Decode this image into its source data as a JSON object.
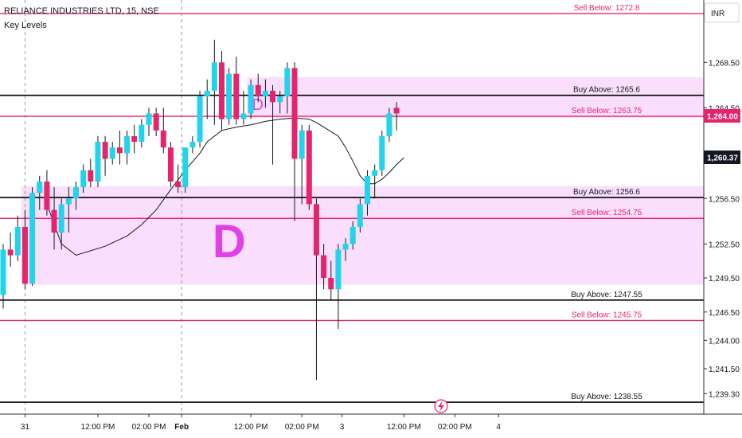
{
  "header": {
    "symbol_line": "RELIANCE INDUSTRIES LTD, 15, NSE",
    "indicator": "Key Levels"
  },
  "currency": "INR",
  "price_badges": {
    "current": "1,264.00",
    "crosshair": "1,260.37"
  },
  "colors": {
    "up": "#22d3ee",
    "down": "#e6246e",
    "buy_line": "#000000",
    "sell_line": "#e6246e",
    "zone_fill": "#f9d9fb",
    "zone_label": "#e040e8",
    "ma_line": "#131722"
  },
  "chart_data": {
    "type": "candlestick",
    "title": "RELIANCE INDUSTRIES LTD, 15, NSE",
    "ylim": [
      1237.5,
      1274.0
    ],
    "y_ticks": [
      {
        "value": 1268.5,
        "label": "1,268.50"
      },
      {
        "value": 1264.5,
        "label": "1,264.50"
      },
      {
        "value": 1256.5,
        "label": "1,256.50"
      },
      {
        "value": 1252.5,
        "label": "1,252.50"
      },
      {
        "value": 1249.5,
        "label": "1,249.50"
      },
      {
        "value": 1246.5,
        "label": "1,246.50"
      },
      {
        "value": 1244.0,
        "label": "1,244.00"
      },
      {
        "value": 1241.5,
        "label": "1,241.50"
      },
      {
        "value": 1239.3,
        "label": "1,239.30"
      }
    ],
    "x_ticks": [
      {
        "index": 3,
        "label": "31"
      },
      {
        "index": 13,
        "label": "12:00 PM"
      },
      {
        "index": 20,
        "label": "02:00 PM"
      },
      {
        "index": 24.5,
        "label": "Feb"
      },
      {
        "index": 34,
        "label": "12:00 PM"
      },
      {
        "index": 41,
        "label": "02:00 PM"
      },
      {
        "index": 46.5,
        "label": "3"
      },
      {
        "index": 55,
        "label": "12:00 PM"
      },
      {
        "index": 62,
        "label": "02:00 PM"
      },
      {
        "index": 68,
        "label": "4"
      }
    ],
    "session_breaks": [
      3,
      24.5
    ],
    "levels": [
      {
        "label": "Sell Below: 1272.8",
        "value": 1272.8,
        "kind": "sell"
      },
      {
        "label": "Buy Above: 1265.6",
        "value": 1265.6,
        "kind": "buy"
      },
      {
        "label": "Sell Below: 1263.75",
        "value": 1263.75,
        "kind": "sell"
      },
      {
        "label": "Buy Above: 1256.6",
        "value": 1256.6,
        "kind": "buy"
      },
      {
        "label": "Sell Below: 1254.75",
        "value": 1254.75,
        "kind": "sell"
      },
      {
        "label": "Buy Above: 1247.55",
        "value": 1247.55,
        "kind": "buy"
      },
      {
        "label": "Sell Below: 1245.75",
        "value": 1245.75,
        "kind": "sell"
      },
      {
        "label": "Buy Above: 1238.55",
        "value": 1238.55,
        "kind": "buy"
      }
    ],
    "zones": [
      {
        "label": "D",
        "top": 1267.2,
        "bottom": 1263.6,
        "start_index": 34,
        "label_size": "small"
      },
      {
        "label": "D",
        "top": 1257.6,
        "bottom": 1248.9,
        "start_index": 3,
        "label_size": "large"
      }
    ],
    "candles": [
      {
        "o": 1248.0,
        "h": 1252.5,
        "l": 1246.8,
        "c": 1252.0
      },
      {
        "o": 1252.0,
        "h": 1253.5,
        "l": 1250.5,
        "c": 1251.5
      },
      {
        "o": 1251.5,
        "h": 1255.0,
        "l": 1251.0,
        "c": 1254.0
      },
      {
        "o": 1254.0,
        "h": 1255.5,
        "l": 1248.5,
        "c": 1249.0
      },
      {
        "o": 1249.0,
        "h": 1257.5,
        "l": 1248.8,
        "c": 1257.0
      },
      {
        "o": 1257.0,
        "h": 1258.5,
        "l": 1255.5,
        "c": 1258.0
      },
      {
        "o": 1258.0,
        "h": 1259.0,
        "l": 1255.0,
        "c": 1255.5
      },
      {
        "o": 1255.5,
        "h": 1257.5,
        "l": 1252.0,
        "c": 1253.5
      },
      {
        "o": 1253.5,
        "h": 1256.5,
        "l": 1252.0,
        "c": 1256.0
      },
      {
        "o": 1256.0,
        "h": 1257.5,
        "l": 1253.5,
        "c": 1256.5
      },
      {
        "o": 1256.5,
        "h": 1258.0,
        "l": 1255.5,
        "c": 1257.5
      },
      {
        "o": 1257.5,
        "h": 1259.5,
        "l": 1257.0,
        "c": 1259.0
      },
      {
        "o": 1259.0,
        "h": 1260.0,
        "l": 1257.5,
        "c": 1258.0
      },
      {
        "o": 1258.0,
        "h": 1262.0,
        "l": 1257.5,
        "c": 1261.5
      },
      {
        "o": 1261.5,
        "h": 1262.0,
        "l": 1258.5,
        "c": 1260.0
      },
      {
        "o": 1260.0,
        "h": 1261.5,
        "l": 1259.5,
        "c": 1261.0
      },
      {
        "o": 1261.0,
        "h": 1262.5,
        "l": 1259.5,
        "c": 1260.5
      },
      {
        "o": 1260.5,
        "h": 1262.5,
        "l": 1259.5,
        "c": 1262.0
      },
      {
        "o": 1262.0,
        "h": 1263.0,
        "l": 1260.5,
        "c": 1261.5
      },
      {
        "o": 1261.5,
        "h": 1263.5,
        "l": 1261.0,
        "c": 1263.0
      },
      {
        "o": 1263.0,
        "h": 1264.5,
        "l": 1262.0,
        "c": 1264.0
      },
      {
        "o": 1264.0,
        "h": 1264.5,
        "l": 1262.0,
        "c": 1262.5
      },
      {
        "o": 1262.5,
        "h": 1264.5,
        "l": 1260.5,
        "c": 1261.0
      },
      {
        "o": 1261.0,
        "h": 1261.5,
        "l": 1257.5,
        "c": 1258.0
      },
      {
        "o": 1258.0,
        "h": 1259.5,
        "l": 1257.0,
        "c": 1257.5
      },
      {
        "o": 1257.5,
        "h": 1261.0,
        "l": 1257.0,
        "c": 1261.0
      },
      {
        "o": 1261.0,
        "h": 1262.0,
        "l": 1260.5,
        "c": 1261.5
      },
      {
        "o": 1261.5,
        "h": 1266.0,
        "l": 1261.0,
        "c": 1265.5
      },
      {
        "o": 1265.5,
        "h": 1267.0,
        "l": 1263.5,
        "c": 1266.0
      },
      {
        "o": 1266.0,
        "h": 1270.5,
        "l": 1263.0,
        "c": 1268.5
      },
      {
        "o": 1268.5,
        "h": 1269.5,
        "l": 1262.5,
        "c": 1263.5
      },
      {
        "o": 1263.5,
        "h": 1268.0,
        "l": 1263.0,
        "c": 1267.5
      },
      {
        "o": 1267.5,
        "h": 1269.0,
        "l": 1263.0,
        "c": 1263.5
      },
      {
        "o": 1263.5,
        "h": 1266.0,
        "l": 1263.0,
        "c": 1264.0
      },
      {
        "o": 1264.0,
        "h": 1267.0,
        "l": 1263.5,
        "c": 1266.5
      },
      {
        "o": 1266.5,
        "h": 1267.5,
        "l": 1265.0,
        "c": 1265.5
      },
      {
        "o": 1265.5,
        "h": 1267.0,
        "l": 1264.5,
        "c": 1266.0
      },
      {
        "o": 1266.0,
        "h": 1266.5,
        "l": 1259.5,
        "c": 1265.0
      },
      {
        "o": 1265.0,
        "h": 1266.0,
        "l": 1264.0,
        "c": 1265.5
      },
      {
        "o": 1265.5,
        "h": 1268.5,
        "l": 1264.0,
        "c": 1268.0
      },
      {
        "o": 1268.0,
        "h": 1268.5,
        "l": 1254.5,
        "c": 1260.0
      },
      {
        "o": 1260.0,
        "h": 1263.0,
        "l": 1256.0,
        "c": 1262.5
      },
      {
        "o": 1262.5,
        "h": 1263.0,
        "l": 1255.5,
        "c": 1256.0
      },
      {
        "o": 1256.0,
        "h": 1256.5,
        "l": 1240.5,
        "c": 1251.5
      },
      {
        "o": 1251.5,
        "h": 1252.5,
        "l": 1248.5,
        "c": 1249.5
      },
      {
        "o": 1249.5,
        "h": 1251.0,
        "l": 1247.5,
        "c": 1248.5
      },
      {
        "o": 1248.5,
        "h": 1252.5,
        "l": 1245.0,
        "c": 1252.0
      },
      {
        "o": 1252.0,
        "h": 1253.0,
        "l": 1251.0,
        "c": 1252.5
      },
      {
        "o": 1252.5,
        "h": 1254.5,
        "l": 1252.0,
        "c": 1254.0
      },
      {
        "o": 1254.0,
        "h": 1256.5,
        "l": 1253.5,
        "c": 1256.0
      },
      {
        "o": 1256.0,
        "h": 1259.0,
        "l": 1255.0,
        "c": 1258.5
      },
      {
        "o": 1258.5,
        "h": 1259.5,
        "l": 1256.5,
        "c": 1259.0
      },
      {
        "o": 1259.0,
        "h": 1262.5,
        "l": 1258.5,
        "c": 1262.0
      },
      {
        "o": 1262.0,
        "h": 1264.5,
        "l": 1261.5,
        "c": 1264.0
      },
      {
        "o": 1264.5,
        "h": 1265.0,
        "l": 1262.5,
        "c": 1264.0
      }
    ],
    "ma": [
      [
        6,
        1256.0
      ],
      [
        8,
        1252.5
      ],
      [
        10,
        1251.5
      ],
      [
        14,
        1252.3
      ],
      [
        17,
        1253.2
      ],
      [
        19,
        1254.2
      ],
      [
        21,
        1255.5
      ],
      [
        23,
        1257.3
      ],
      [
        25,
        1259.0
      ],
      [
        27,
        1260.5
      ],
      [
        28,
        1261.5
      ],
      [
        30,
        1262.5
      ],
      [
        32,
        1262.8
      ],
      [
        34,
        1263.0
      ],
      [
        36,
        1263.3
      ],
      [
        38,
        1263.5
      ],
      [
        40,
        1263.6
      ],
      [
        42,
        1263.5
      ],
      [
        43,
        1263.2
      ],
      [
        44,
        1262.8
      ],
      [
        46,
        1262.0
      ],
      [
        47,
        1261.0
      ],
      [
        48,
        1259.8
      ],
      [
        49,
        1258.5
      ],
      [
        50,
        1257.8
      ],
      [
        51,
        1257.8
      ],
      [
        52,
        1258.2
      ],
      [
        53,
        1258.8
      ],
      [
        54,
        1259.5
      ],
      [
        55,
        1260.1
      ]
    ]
  }
}
